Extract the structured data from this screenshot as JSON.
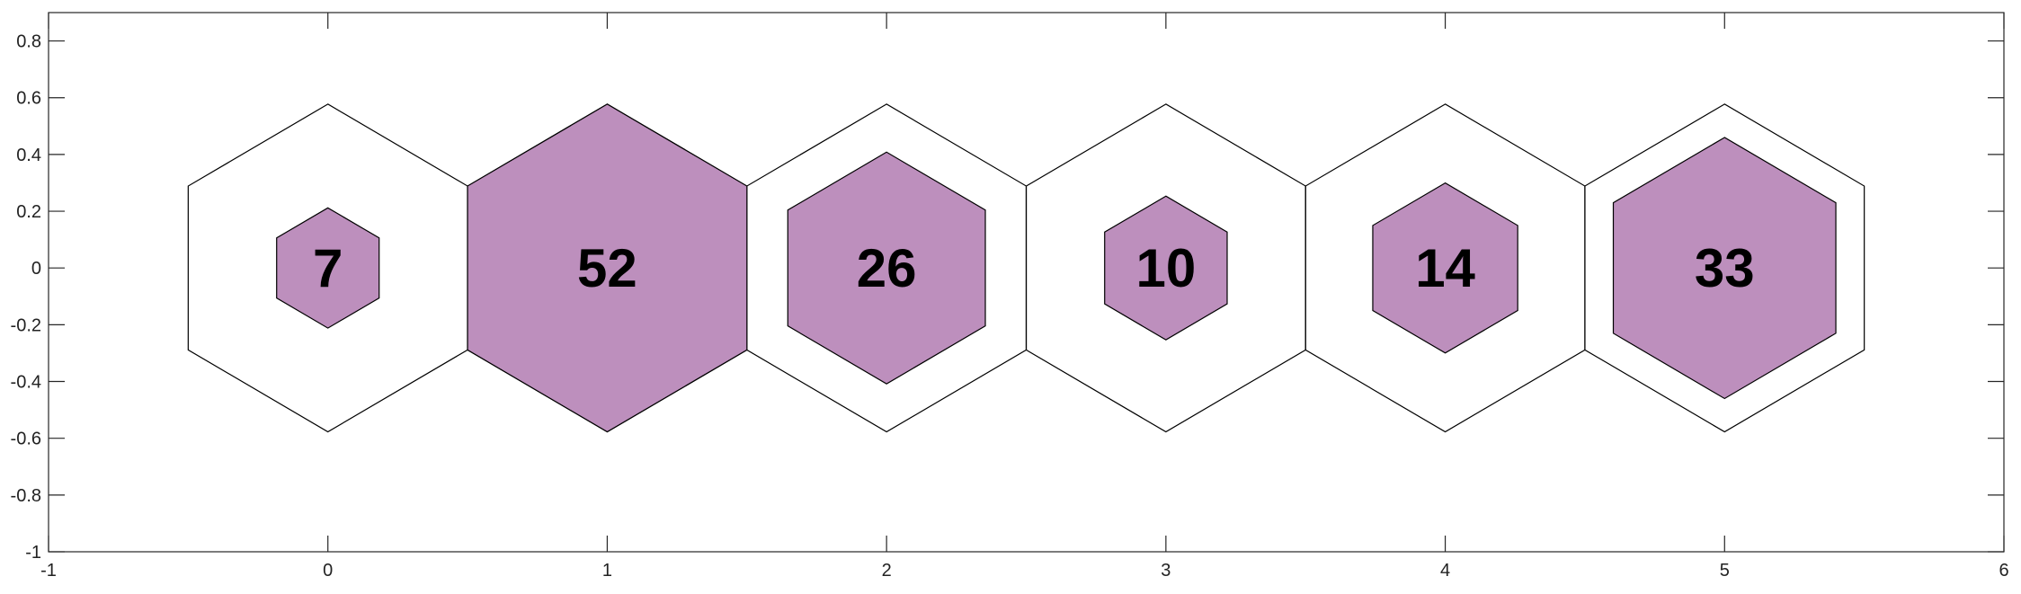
{
  "chart_data": {
    "type": "hexbin",
    "title": "",
    "xlabel": "",
    "ylabel": "",
    "xlim": [
      -1,
      6
    ],
    "ylim": [
      -1,
      0.9
    ],
    "xticks": [
      -1,
      0,
      1,
      2,
      3,
      4,
      5,
      6
    ],
    "xtick_labels": [
      "-1",
      "0",
      "1",
      "2",
      "3",
      "4",
      "5",
      "6"
    ],
    "yticks": [
      -1,
      -0.8,
      -0.6,
      -0.4,
      -0.2,
      0,
      0.2,
      0.4,
      0.6,
      0.8
    ],
    "ytick_labels": [
      "-1",
      "-0.8",
      "-0.6",
      "-0.4",
      "-0.2",
      "0",
      "0.2",
      "0.4",
      "0.6",
      "0.8"
    ],
    "grid": false,
    "legend": false,
    "max_value": 52,
    "hex_outer_radius": 0.5774,
    "fill_color": "#bd8fbd",
    "outline_color": "#000000",
    "cells": [
      {
        "x": 0,
        "y": 0,
        "value": 7
      },
      {
        "x": 1,
        "y": 0,
        "value": 52
      },
      {
        "x": 2,
        "y": 0,
        "value": 26
      },
      {
        "x": 3,
        "y": 0,
        "value": 10
      },
      {
        "x": 4,
        "y": 0,
        "value": 14
      },
      {
        "x": 5,
        "y": 0,
        "value": 33
      }
    ]
  }
}
